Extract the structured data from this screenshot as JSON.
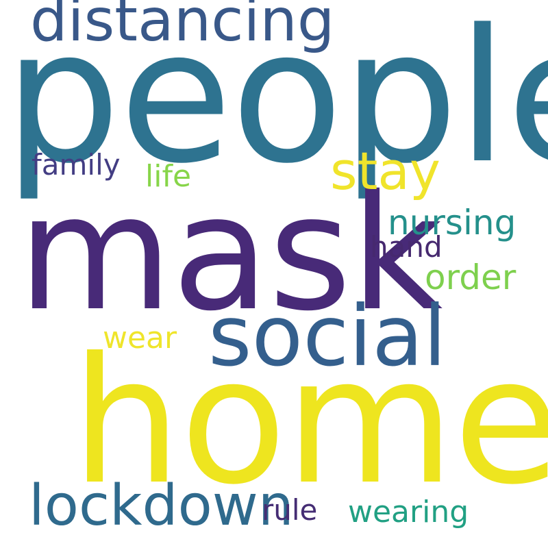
{
  "word_cloud": {
    "words": [
      {
        "id": "people",
        "text": "people",
        "color": "#2e7390"
      },
      {
        "id": "mask",
        "text": "mask",
        "color": "#482a78"
      },
      {
        "id": "home",
        "text": "home",
        "color": "#eee51f"
      },
      {
        "id": "social",
        "text": "social",
        "color": "#345f8d"
      },
      {
        "id": "distancing",
        "text": "distancing",
        "color": "#395889"
      },
      {
        "id": "lockdown",
        "text": "lockdown",
        "color": "#2f6a8d"
      },
      {
        "id": "stay",
        "text": "stay",
        "color": "#f0e42b"
      },
      {
        "id": "nursing",
        "text": "nursing",
        "color": "#24908b"
      },
      {
        "id": "order",
        "text": "order",
        "color": "#7ed04e"
      },
      {
        "id": "family",
        "text": "family",
        "color": "#433d83"
      },
      {
        "id": "life",
        "text": "life",
        "color": "#87d549"
      },
      {
        "id": "hand",
        "text": "hand",
        "color": "#46296f"
      },
      {
        "id": "wear",
        "text": "wear",
        "color": "#efe52b"
      },
      {
        "id": "rule",
        "text": "rule",
        "color": "#452d74"
      },
      {
        "id": "wearing",
        "text": "wearing",
        "color": "#21a083"
      }
    ]
  }
}
